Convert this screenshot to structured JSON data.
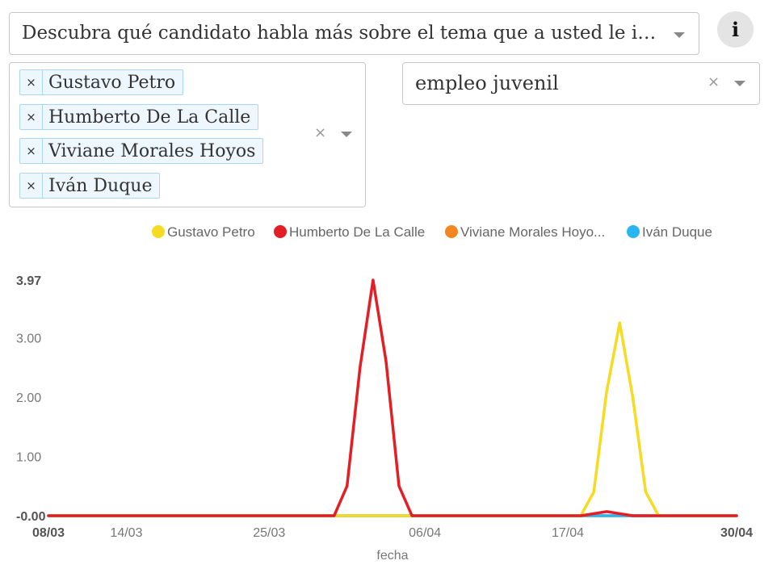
{
  "controls": {
    "title_select": "Descubra qué candidato habla más sobre el tema que a usted le interesa",
    "candidates": [
      {
        "label": "Gustavo Petro"
      },
      {
        "label": "Humberto De La Calle"
      },
      {
        "label": "Viviane Morales Hoyos"
      },
      {
        "label": "Iván Duque"
      }
    ],
    "remove_symbol": "×",
    "clear_symbol": "×",
    "topic": "empleo juvenil",
    "info_symbol": "i"
  },
  "chart_data": {
    "type": "line",
    "xlabel": "fecha",
    "ylabel": "",
    "ylim": [
      0,
      3.97
    ],
    "y_ticks": [
      "-0.00",
      "1.00",
      "2.00",
      "3.00",
      "3.97"
    ],
    "x_ticks": [
      "08/03",
      "14/03",
      "25/03",
      "06/04",
      "17/04",
      "30/04"
    ],
    "x_range": [
      "2018-03-08",
      "2018-04-30"
    ],
    "legend_position": "top",
    "grid": false,
    "series": [
      {
        "name": "Gustavo Petro",
        "legend_label": "Gustavo Petro",
        "color": "#f5dc23",
        "x": [
          "2018-03-08",
          "2018-04-18",
          "2018-04-19",
          "2018-04-20",
          "2018-04-21",
          "2018-04-22",
          "2018-04-23",
          "2018-04-24",
          "2018-04-30"
        ],
        "values": [
          0,
          0,
          0.4,
          2.1,
          3.25,
          2.0,
          0.4,
          0,
          0
        ]
      },
      {
        "name": "Humberto De La Calle",
        "legend_label": "Humberto De La Calle",
        "color": "#e31e24",
        "x": [
          "2018-03-08",
          "2018-03-30",
          "2018-03-31",
          "2018-04-01",
          "2018-04-02",
          "2018-04-03",
          "2018-04-04",
          "2018-04-05",
          "2018-04-18",
          "2018-04-20",
          "2018-04-22",
          "2018-04-30"
        ],
        "values": [
          0,
          0,
          0.5,
          2.5,
          3.97,
          2.6,
          0.5,
          0,
          0,
          0.07,
          0,
          0
        ]
      },
      {
        "name": "Viviane Morales Hoyos",
        "legend_label": "Viviane Morales Hoyo...",
        "color": "#f4851f",
        "x": [
          "2018-03-08",
          "2018-04-30"
        ],
        "values": [
          0,
          0
        ]
      },
      {
        "name": "Iván Duque",
        "legend_label": "Iván Duque",
        "color": "#29b6f0",
        "x": [
          "2018-03-08",
          "2018-04-30"
        ],
        "values": [
          0,
          0
        ]
      }
    ]
  }
}
